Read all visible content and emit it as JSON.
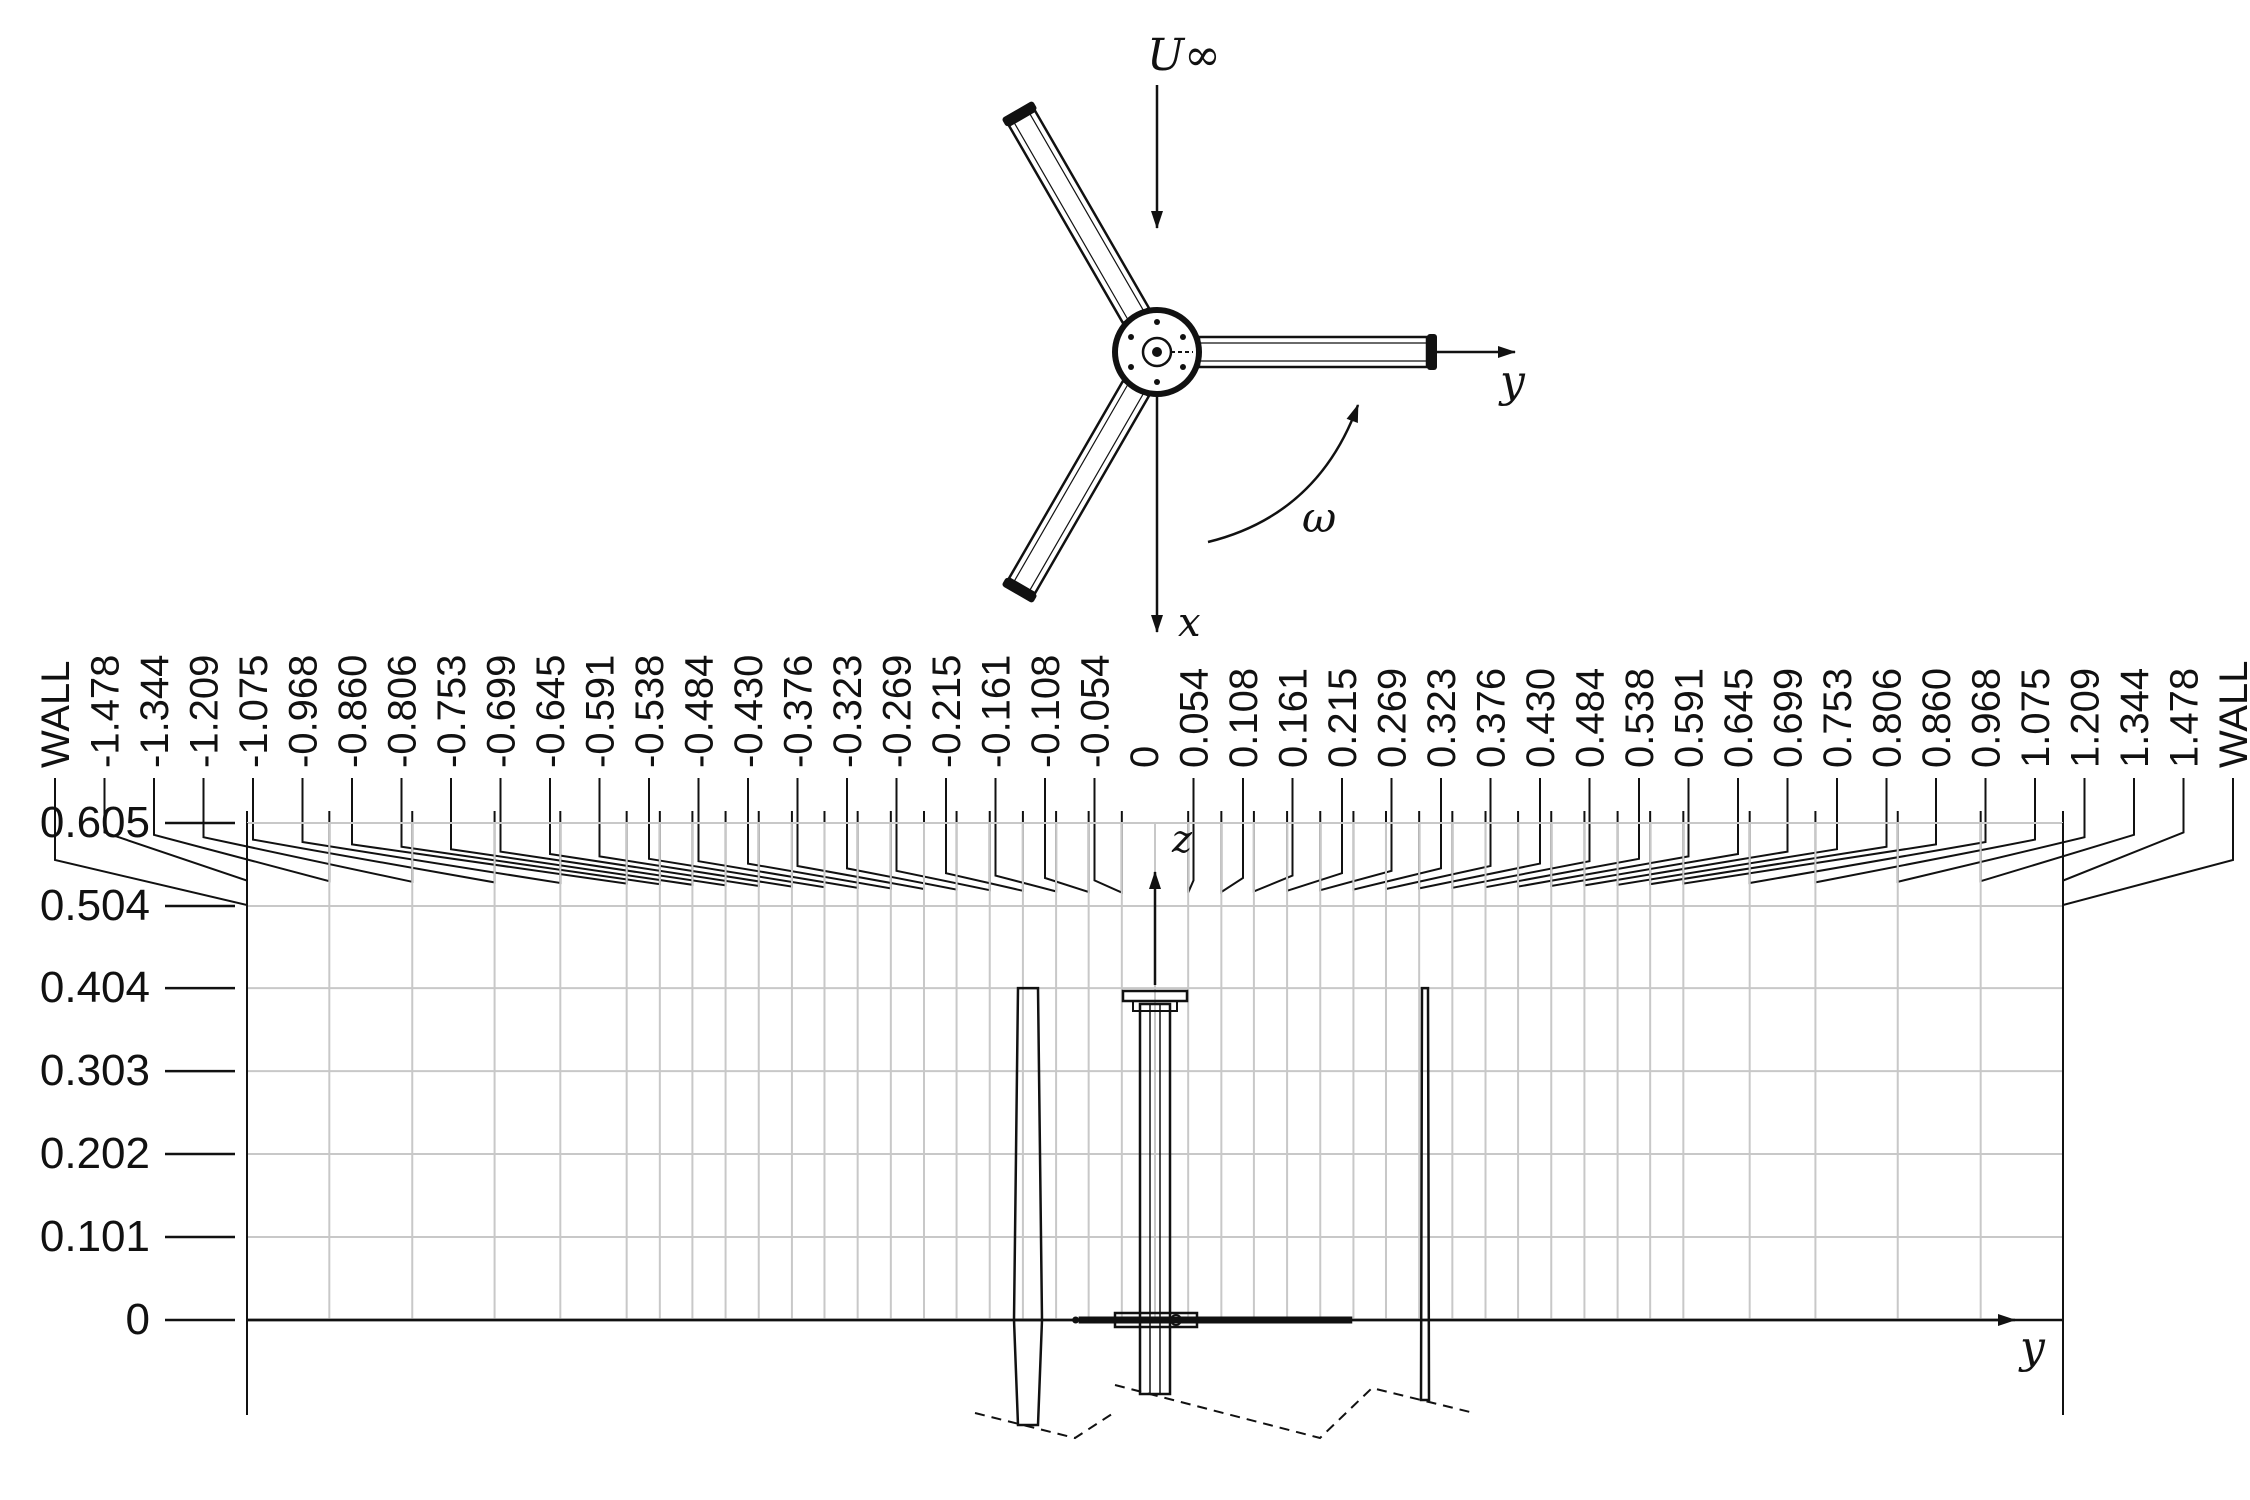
{
  "symbols": {
    "freestream": "U∞",
    "omega": "ω",
    "x": "x",
    "y": "y",
    "z": "z"
  },
  "probe_labels": [
    "WALL",
    "-1.478",
    "-1.344",
    "-1.209",
    "-1.075",
    "-0.968",
    "-0.860",
    "-0.806",
    "-0.753",
    "-0.699",
    "-0.645",
    "-0.591",
    "-0.538",
    "-0.484",
    "-0.430",
    "-0.376",
    "-0.323",
    "-0.269",
    "-0.215",
    "-0.161",
    "-0.108",
    "-0.054",
    "0",
    "0.054",
    "0.108",
    "0.161",
    "0.215",
    "0.269",
    "0.323",
    "0.376",
    "0.430",
    "0.484",
    "0.538",
    "0.591",
    "0.645",
    "0.699",
    "0.753",
    "0.806",
    "0.860",
    "0.968",
    "1.075",
    "1.209",
    "1.344",
    "1.478",
    "WALL"
  ],
  "probe_y_values": [
    -1.478,
    -1.344,
    -1.209,
    -1.075,
    -0.968,
    -0.86,
    -0.806,
    -0.753,
    -0.699,
    -0.645,
    -0.591,
    -0.538,
    -0.484,
    -0.43,
    -0.376,
    -0.323,
    -0.269,
    -0.215,
    -0.161,
    -0.108,
    -0.054,
    0,
    0.054,
    0.108,
    0.161,
    0.215,
    0.269,
    0.323,
    0.376,
    0.43,
    0.484,
    0.538,
    0.591,
    0.645,
    0.699,
    0.753,
    0.806,
    0.86,
    0.968,
    1.075,
    1.209,
    1.344,
    1.478
  ],
  "z_labels": [
    "0.605",
    "0.504",
    "0.404",
    "0.303",
    "0.202",
    "0.101",
    "0"
  ],
  "z_values": [
    0.605,
    0.504,
    0.404,
    0.303,
    0.202,
    0.101,
    0
  ],
  "wall_y": 1.478,
  "blade_tip_z": 0.404,
  "blade_offset_y": 0.269,
  "colors": {
    "ink": "#111111",
    "grid": "#c8c8c8"
  },
  "icons": [
    "flow-arrow-icon",
    "rotation-arrow-icon",
    "hub-icon"
  ]
}
